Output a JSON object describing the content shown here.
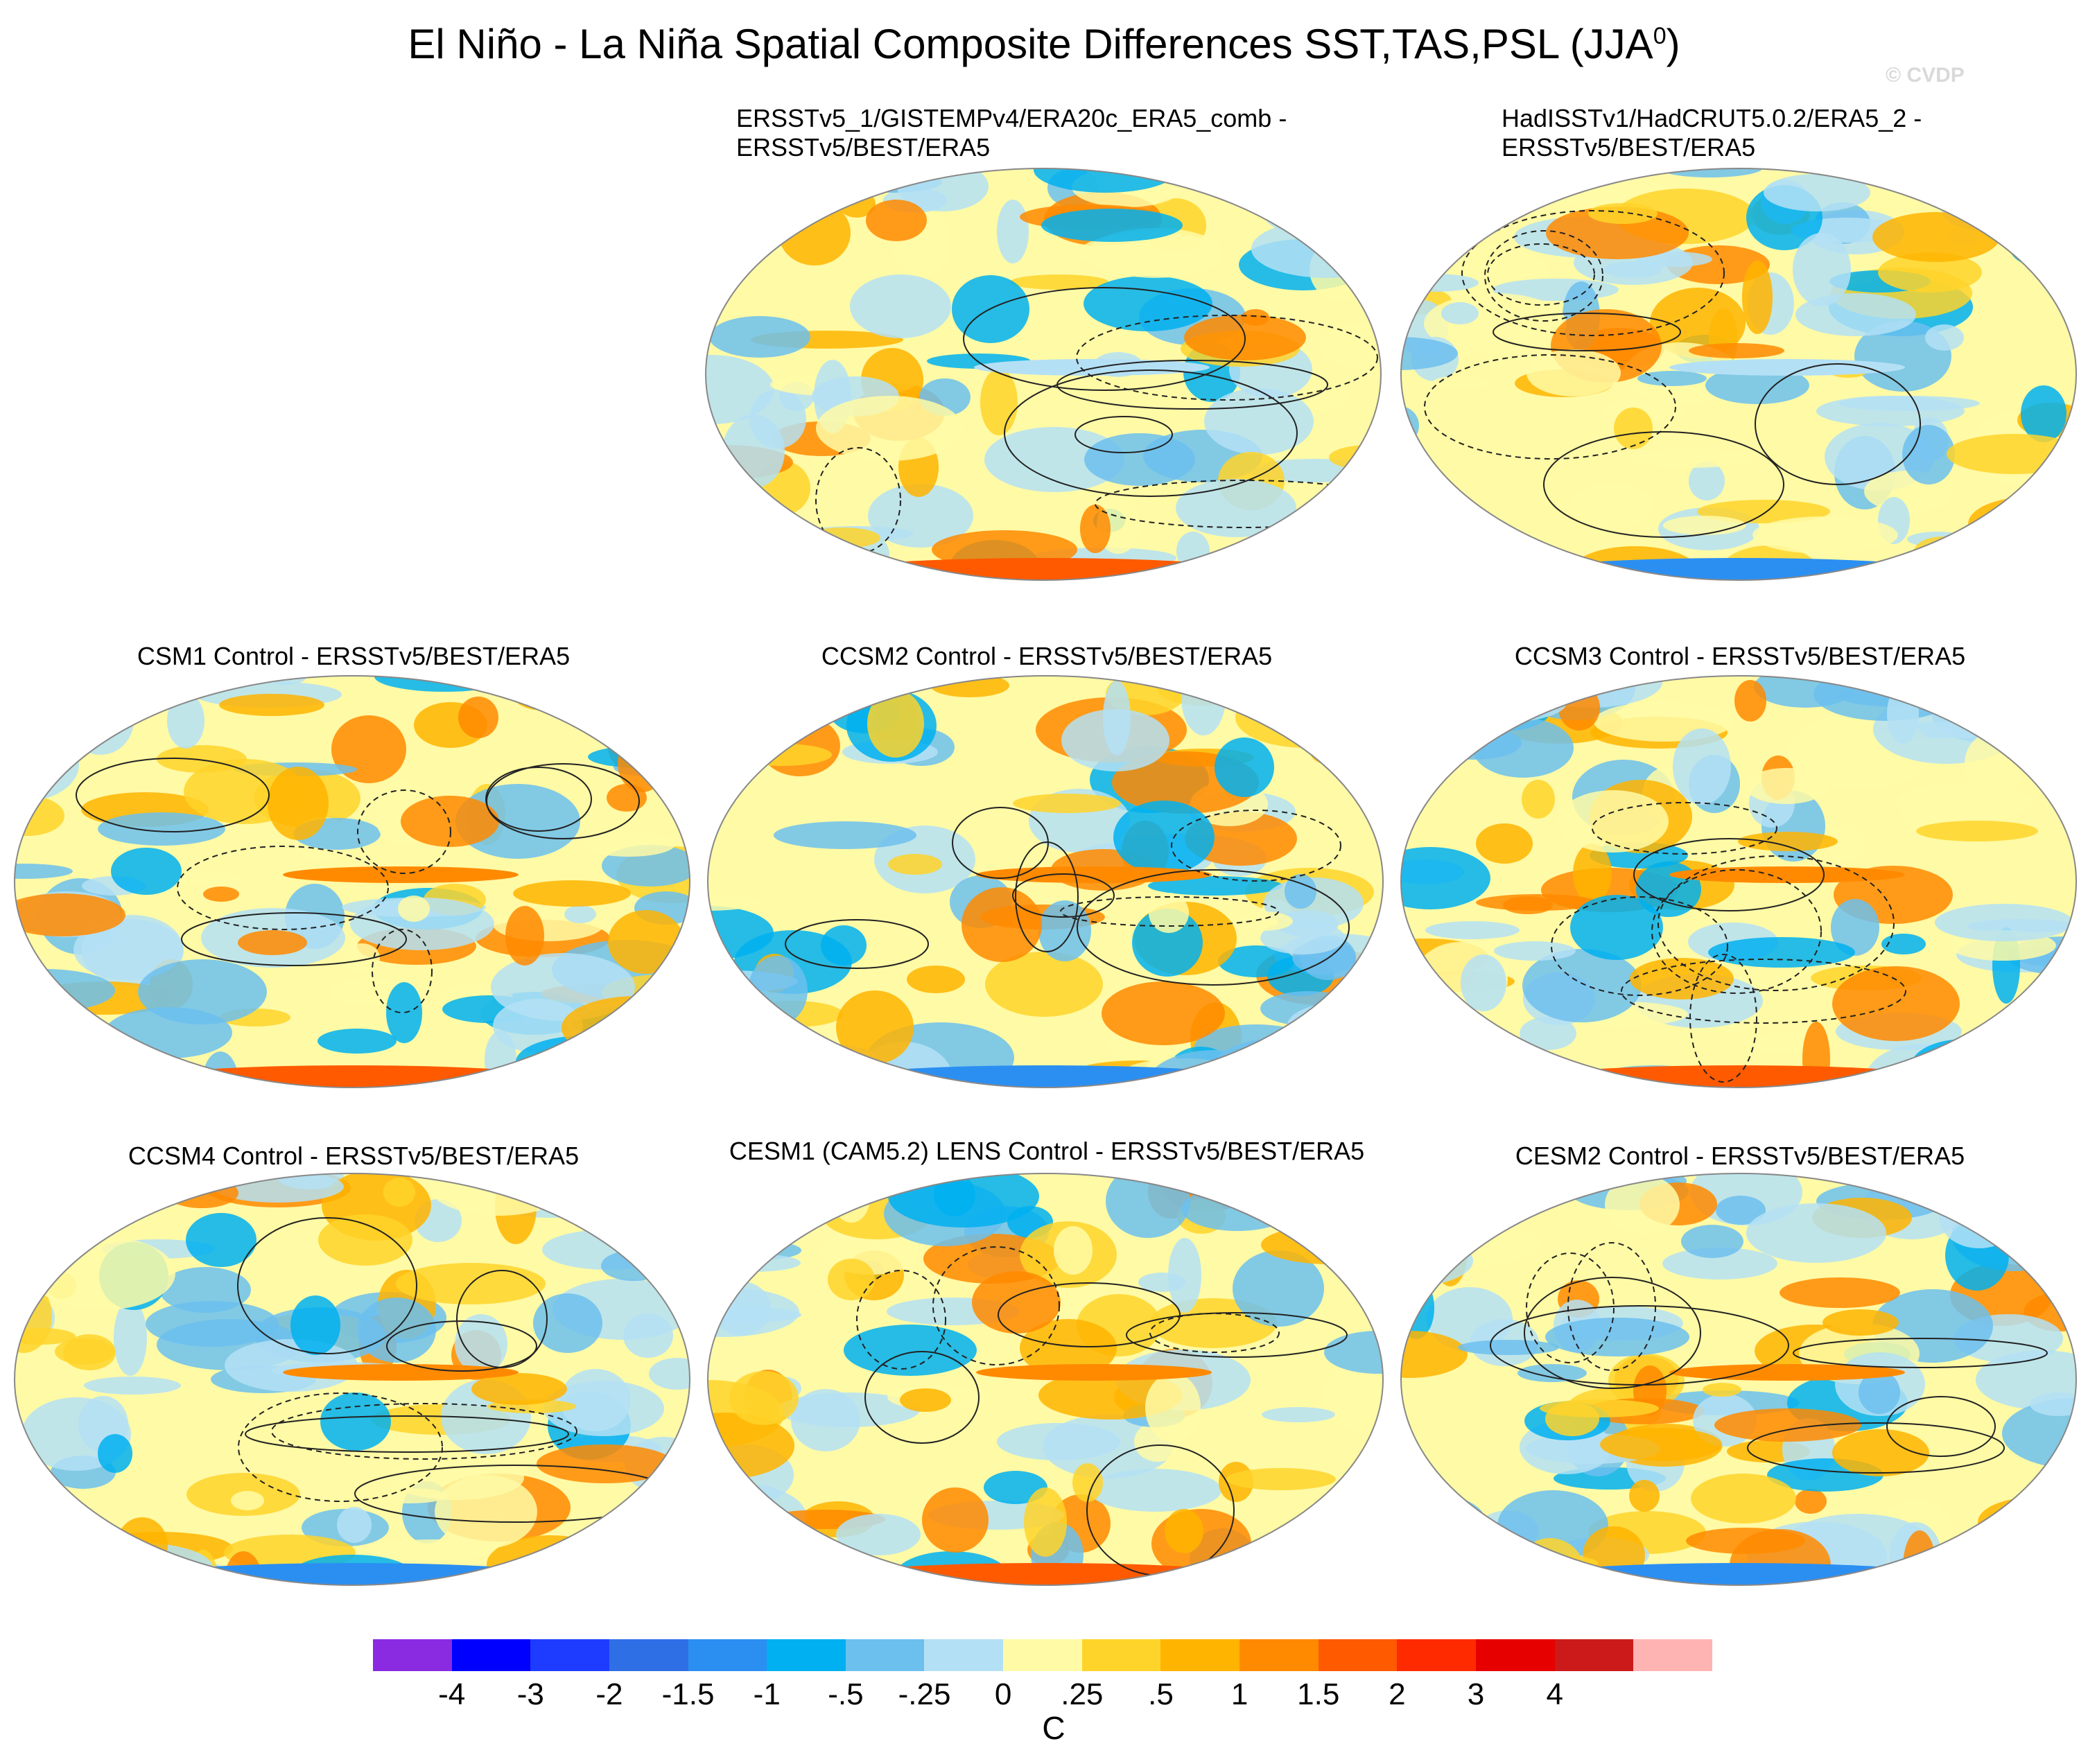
{
  "title": {
    "main": "El Niño - La Niña Spatial Composite Differences SST,TAS,PSL (JJA",
    "sup": "0",
    "end": ")"
  },
  "watermark": "© CVDP",
  "panels": [
    {
      "id": "p1",
      "line1": "ERSSTv5_1/GISTEMPv4/ERA20c_ERA5_comb -",
      "line2": "ERSSTv5/BEST/ERA5",
      "icon": "world-map-icon"
    },
    {
      "id": "p2",
      "line1": "HadISSTv1/HadCRUT5.0.2/ERA5_2 -",
      "line2": "ERSSTv5/BEST/ERA5",
      "icon": "world-map-icon"
    },
    {
      "id": "p3",
      "line1": "CSM1 Control - ERSSTv5/BEST/ERA5",
      "icon": "world-map-icon"
    },
    {
      "id": "p4",
      "line1": "CCSM2 Control - ERSSTv5/BEST/ERA5",
      "icon": "world-map-icon"
    },
    {
      "id": "p5",
      "line1": "CCSM3 Control - ERSSTv5/BEST/ERA5",
      "icon": "world-map-icon"
    },
    {
      "id": "p6",
      "line1": "CCSM4 Control - ERSSTv5/BEST/ERA5",
      "icon": "world-map-icon"
    },
    {
      "id": "p7",
      "line1": "CESM1 (CAM5.2) LENS Control - ERSSTv5/BEST/ERA5",
      "icon": "world-map-icon"
    },
    {
      "id": "p8",
      "line1": "CESM2 Control - ERSSTv5/BEST/ERA5",
      "icon": "world-map-icon"
    }
  ],
  "colorbar": {
    "colors": [
      "#8a2be2",
      "#0000ff",
      "#1e3cff",
      "#2f6fe6",
      "#2b8ff2",
      "#00b0f0",
      "#6cc0ee",
      "#b4e0f5",
      "#fffaa6",
      "#ffd42a",
      "#ffb400",
      "#ff8a00",
      "#ff5a00",
      "#ff2a00",
      "#e60000",
      "#cc1a1a",
      "#ffb4b4"
    ],
    "tick_labels": [
      "-4",
      "-3",
      "-2",
      "-1.5",
      "-1",
      "-.5",
      "-.25",
      "0",
      ".25",
      ".5",
      "1",
      "1.5",
      "2",
      "3",
      "4"
    ],
    "unit": "C"
  }
}
